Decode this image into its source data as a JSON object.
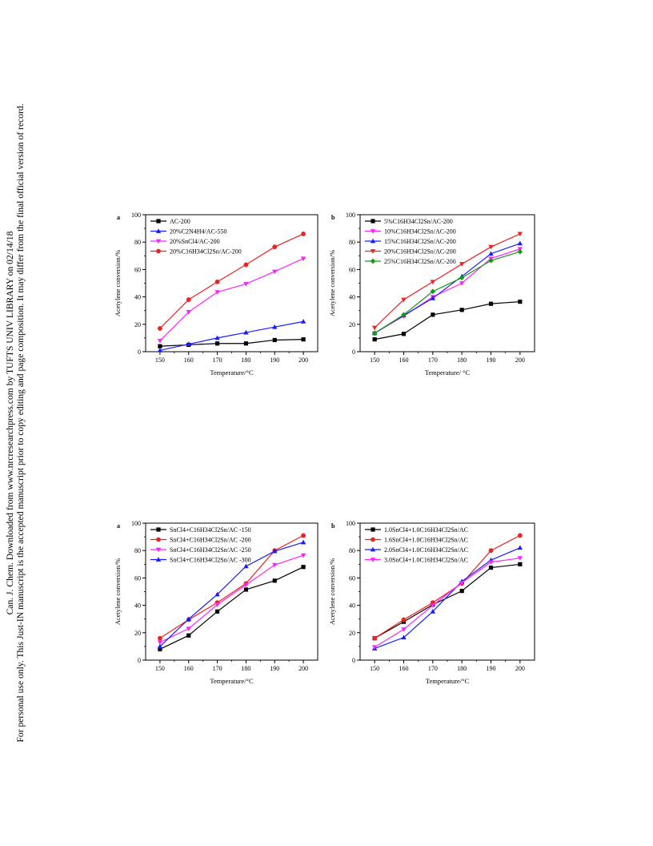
{
  "side_note": {
    "line1": "Can. J. Chem. Downloaded from www.nrcresearchpress.com by TUFTS UNIV LIBRARY on 02/14/18",
    "line2": "For personal use only. This Just-IN manuscript is the accepted manuscript prior to copy editing and page composition. It may differ from the final official version of record."
  },
  "chart_data": [
    {
      "id": "tl",
      "type": "line",
      "panel_label": "a",
      "xlabel": "Temperature/°C",
      "ylabel": "Acetylene conversion/%",
      "x": [
        150,
        160,
        170,
        180,
        190,
        200
      ],
      "xlim": [
        145,
        205
      ],
      "ylim": [
        0,
        100
      ],
      "yticks": [
        0,
        20,
        40,
        60,
        80,
        100
      ],
      "legend_position": "top-left",
      "series": [
        {
          "name": "AC-200",
          "color": "#000000",
          "marker": "square",
          "values": [
            4,
            5,
            6,
            6,
            8.5,
            9
          ]
        },
        {
          "name": "20%C2N4H4/AC-550",
          "color": "#1a1aff",
          "marker": "triangle-up",
          "values": [
            1,
            5.5,
            10,
            14,
            18,
            22
          ]
        },
        {
          "name": "20%SnCl4/AC-200",
          "color": "#ff22ff",
          "marker": "triangle-down",
          "values": [
            8,
            29,
            43.5,
            49.5,
            58.5,
            68
          ]
        },
        {
          "name": "20%C16H34Cl2Sn/AC-200",
          "color": "#ee2222",
          "marker": "circle",
          "values": [
            17,
            38,
            51,
            63.5,
            76.5,
            86
          ]
        }
      ]
    },
    {
      "id": "tr",
      "type": "line",
      "panel_label": "b",
      "xlabel": "Temperature/ °C",
      "ylabel": "Acetylene conversion/%",
      "x": [
        150,
        160,
        170,
        180,
        190,
        200
      ],
      "xlim": [
        145,
        205
      ],
      "ylim": [
        0,
        100
      ],
      "yticks": [
        0,
        20,
        40,
        60,
        80,
        100
      ],
      "legend_position": "top-left",
      "series": [
        {
          "name": "5%C16H34Cl2Sn/AC-200",
          "color": "#000000",
          "marker": "square",
          "values": [
            9,
            13,
            27,
            30.5,
            35,
            36.5
          ]
        },
        {
          "name": "10%C16H34Cl2Sn/AC-200",
          "color": "#ff22ff",
          "marker": "triangle-down",
          "values": [
            13.5,
            26,
            40,
            50,
            68,
            75
          ]
        },
        {
          "name": "15%C16H34Cl2Sn/AC-200",
          "color": "#1a1aff",
          "marker": "triangle-up",
          "values": [
            13.5,
            26.5,
            39,
            55,
            71.5,
            79
          ]
        },
        {
          "name": "20%C16H34Cl2Sn/AC-200",
          "color": "#ee2222",
          "marker": "triangle-down",
          "values": [
            17.5,
            38,
            51,
            64,
            76.5,
            86
          ]
        },
        {
          "name": "25%C16H34Cl2Sn/AC-200",
          "color": "#119911",
          "marker": "diamond",
          "values": [
            13.5,
            27,
            44,
            54,
            66.5,
            73
          ]
        }
      ]
    },
    {
      "id": "bl",
      "type": "line",
      "panel_label": "a",
      "xlabel": "Temperature/°C",
      "ylabel": "Acetylene conversion/%",
      "x": [
        150,
        160,
        170,
        180,
        190,
        200
      ],
      "xlim": [
        145,
        205
      ],
      "ylim": [
        0,
        100
      ],
      "yticks": [
        0,
        20,
        40,
        60,
        80,
        100
      ],
      "legend_position": "top-left",
      "series": [
        {
          "name": "SnCl4+C16H34Cl2Sn/AC -150",
          "color": "#000000",
          "marker": "square",
          "values": [
            8,
            18,
            35.5,
            51.5,
            58,
            68
          ]
        },
        {
          "name": "SnCl4+C16H34Cl2Sn/AC -200",
          "color": "#ee2222",
          "marker": "circle",
          "values": [
            16,
            29.5,
            42,
            56,
            80,
            91
          ]
        },
        {
          "name": "SnCl4+C16H34Cl2Sn/AC -250",
          "color": "#ff22ff",
          "marker": "triangle-down",
          "values": [
            13,
            23,
            40.5,
            55,
            69.5,
            76.5
          ]
        },
        {
          "name": "SnCl4+C16H34Cl2Sn/AC -300",
          "color": "#1a1aff",
          "marker": "triangle-up",
          "values": [
            10,
            30,
            48,
            68.5,
            79.5,
            86
          ]
        }
      ]
    },
    {
      "id": "br",
      "type": "line",
      "panel_label": "b",
      "xlabel": "Temperature/°C",
      "ylabel": "Acetylene conversion/%",
      "x": [
        150,
        160,
        170,
        180,
        190,
        200
      ],
      "xlim": [
        145,
        205
      ],
      "ylim": [
        0,
        100
      ],
      "yticks": [
        0,
        20,
        40,
        60,
        80,
        100
      ],
      "legend_position": "top-left",
      "series": [
        {
          "name": "1.0SnCl4+1.0C16H34Cl2Sn/AC",
          "color": "#000000",
          "marker": "square",
          "values": [
            16,
            28,
            40.5,
            50.5,
            67.5,
            70
          ]
        },
        {
          "name": "1.6SnCl4+1.0C16H34Cl2Sn/AC",
          "color": "#ee2222",
          "marker": "circle",
          "values": [
            16,
            29.5,
            42,
            56,
            80,
            91
          ]
        },
        {
          "name": "2.0SnCl4+1.0C16H34Cl2Sn/AC",
          "color": "#1a1aff",
          "marker": "triangle-up",
          "values": [
            8.5,
            16.5,
            35.5,
            57.5,
            73,
            82
          ]
        },
        {
          "name": "3.0SnCl4+1.0C16H34Cl2Sn/AC",
          "color": "#ff22ff",
          "marker": "triangle-down",
          "values": [
            9.5,
            22.5,
            40,
            56.5,
            71.5,
            74.5
          ]
        }
      ]
    }
  ]
}
